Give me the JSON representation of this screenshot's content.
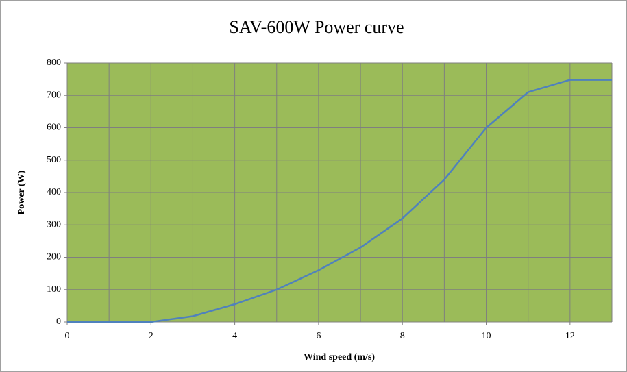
{
  "chart_data": {
    "type": "line",
    "title": "SAV-600W Power curve",
    "x_label": "Wind speed (m/s)",
    "y_label": "Power (W)",
    "x": [
      0,
      1,
      2,
      3,
      4,
      5,
      6,
      7,
      8,
      9,
      10,
      11,
      12,
      13
    ],
    "series": [
      {
        "name": "Power",
        "color": "#4f81bd",
        "values": [
          0,
          0,
          0,
          18,
          55,
          100,
          160,
          230,
          320,
          440,
          600,
          710,
          748,
          748
        ]
      }
    ],
    "xlim": [
      0,
      13
    ],
    "xticks": [
      0,
      2,
      4,
      6,
      8,
      10,
      12
    ],
    "xgrid": [
      1,
      2,
      3,
      4,
      5,
      6,
      7,
      8,
      9,
      10,
      11,
      12,
      13
    ],
    "ylim": [
      0,
      800
    ],
    "yticks": [
      0,
      100,
      200,
      300,
      400,
      500,
      600,
      700,
      800
    ],
    "grid": true,
    "plot_background": "#9bbb59"
  }
}
